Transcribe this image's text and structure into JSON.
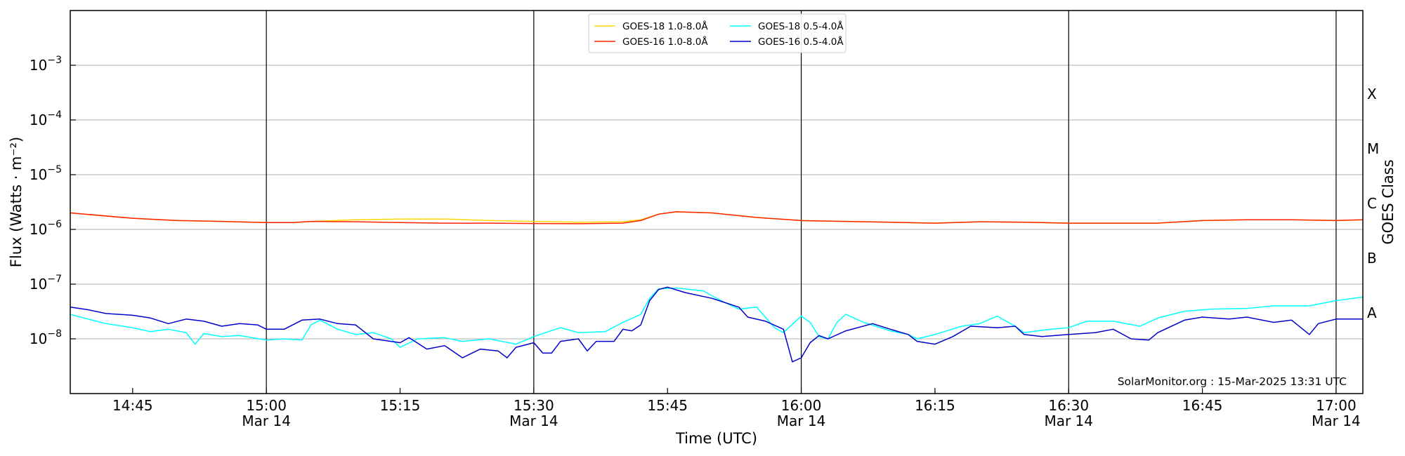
{
  "chart_data": {
    "type": "line",
    "xlabel": "Time (UTC)",
    "ylabel": "Flux (Watts · m⁻²)",
    "y2label": "GOES Class",
    "yscale": "log",
    "xlim": [
      "2025-03-14T14:38",
      "2025-03-14T17:03"
    ],
    "ylim": [
      1e-09,
      0.01
    ],
    "x_ticks": [
      {
        "time": "2025-03-14T14:45",
        "label": "14:45",
        "sublabel": "",
        "vline": false
      },
      {
        "time": "2025-03-14T15:00",
        "label": "15:00",
        "sublabel": "Mar 14",
        "vline": true
      },
      {
        "time": "2025-03-14T15:15",
        "label": "15:15",
        "sublabel": "",
        "vline": false
      },
      {
        "time": "2025-03-14T15:30",
        "label": "15:30",
        "sublabel": "Mar 14",
        "vline": true
      },
      {
        "time": "2025-03-14T15:45",
        "label": "15:45",
        "sublabel": "",
        "vline": false
      },
      {
        "time": "2025-03-14T16:00",
        "label": "16:00",
        "sublabel": "Mar 14",
        "vline": true
      },
      {
        "time": "2025-03-14T16:15",
        "label": "16:15",
        "sublabel": "",
        "vline": false
      },
      {
        "time": "2025-03-14T16:30",
        "label": "16:30",
        "sublabel": "Mar 14",
        "vline": true
      },
      {
        "time": "2025-03-14T16:45",
        "label": "16:45",
        "sublabel": "",
        "vline": false
      },
      {
        "time": "2025-03-14T17:00",
        "label": "17:00",
        "sublabel": "Mar 14",
        "vline": true
      }
    ],
    "y_ticks": [
      {
        "value": 1e-08,
        "exp": "-8"
      },
      {
        "value": 1e-07,
        "exp": "-7"
      },
      {
        "value": 1e-06,
        "exp": "-6"
      },
      {
        "value": 1e-05,
        "exp": "-5"
      },
      {
        "value": 0.0001,
        "exp": "-4"
      },
      {
        "value": 0.001,
        "exp": "-3"
      }
    ],
    "goes_classes": [
      {
        "label": "A",
        "value": 3e-08
      },
      {
        "label": "B",
        "value": 3e-07
      },
      {
        "label": "C",
        "value": 3e-06
      },
      {
        "label": "M",
        "value": 3e-05
      },
      {
        "label": "X",
        "value": 0.0003
      }
    ],
    "grid": true,
    "legend_position": "top-center",
    "credit": "SolarMonitor.org : 15-Mar-2025 13:31 UTC",
    "series": [
      {
        "name": "GOES-18 1.0-8.0Å",
        "color": "#ffd700",
        "points": [
          [
            "2025-03-14T14:38",
            2e-06
          ],
          [
            "2025-03-14T14:45",
            1.6e-06
          ],
          [
            "2025-03-14T14:50",
            1.45e-06
          ],
          [
            "2025-03-14T14:55",
            1.4e-06
          ],
          [
            "2025-03-14T15:00",
            1.33e-06
          ],
          [
            "2025-03-14T15:03",
            1.33e-06
          ],
          [
            "2025-03-14T15:05",
            1.4e-06
          ],
          [
            "2025-03-14T15:10",
            1.5e-06
          ],
          [
            "2025-03-14T15:15",
            1.55e-06
          ],
          [
            "2025-03-14T15:20",
            1.55e-06
          ],
          [
            "2025-03-14T15:25",
            1.45e-06
          ],
          [
            "2025-03-14T15:30",
            1.4e-06
          ],
          [
            "2025-03-14T15:35",
            1.35e-06
          ],
          [
            "2025-03-14T15:40",
            1.38e-06
          ],
          [
            "2025-03-14T15:42",
            1.5e-06
          ],
          [
            "2025-03-14T15:44",
            1.9e-06
          ],
          [
            "2025-03-14T15:46",
            2.1e-06
          ],
          [
            "2025-03-14T15:50",
            2e-06
          ],
          [
            "2025-03-14T15:55",
            1.65e-06
          ],
          [
            "2025-03-14T16:00",
            1.45e-06
          ],
          [
            "2025-03-14T16:05",
            1.4e-06
          ],
          [
            "2025-03-14T16:10",
            1.35e-06
          ],
          [
            "2025-03-14T16:15",
            1.3e-06
          ],
          [
            "2025-03-14T16:20",
            1.38e-06
          ],
          [
            "2025-03-14T16:25",
            1.35e-06
          ],
          [
            "2025-03-14T16:30",
            1.3e-06
          ],
          [
            "2025-03-14T16:35",
            1.3e-06
          ],
          [
            "2025-03-14T16:40",
            1.3e-06
          ],
          [
            "2025-03-14T16:45",
            1.45e-06
          ],
          [
            "2025-03-14T16:50",
            1.5e-06
          ],
          [
            "2025-03-14T16:55",
            1.5e-06
          ],
          [
            "2025-03-14T17:00",
            1.45e-06
          ],
          [
            "2025-03-14T17:03",
            1.5e-06
          ]
        ]
      },
      {
        "name": "GOES-16 1.0-8.0Å",
        "color": "#ff2200",
        "points": [
          [
            "2025-03-14T14:38",
            2e-06
          ],
          [
            "2025-03-14T14:45",
            1.6e-06
          ],
          [
            "2025-03-14T14:50",
            1.45e-06
          ],
          [
            "2025-03-14T14:55",
            1.4e-06
          ],
          [
            "2025-03-14T15:00",
            1.33e-06
          ],
          [
            "2025-03-14T15:03",
            1.33e-06
          ],
          [
            "2025-03-14T15:05",
            1.4e-06
          ],
          [
            "2025-03-14T15:10",
            1.38e-06
          ],
          [
            "2025-03-14T15:15",
            1.33e-06
          ],
          [
            "2025-03-14T15:20",
            1.3e-06
          ],
          [
            "2025-03-14T15:25",
            1.3e-06
          ],
          [
            "2025-03-14T15:30",
            1.28e-06
          ],
          [
            "2025-03-14T15:35",
            1.27e-06
          ],
          [
            "2025-03-14T15:40",
            1.3e-06
          ],
          [
            "2025-03-14T15:42",
            1.45e-06
          ],
          [
            "2025-03-14T15:44",
            1.9e-06
          ],
          [
            "2025-03-14T15:46",
            2.1e-06
          ],
          [
            "2025-03-14T15:50",
            2e-06
          ],
          [
            "2025-03-14T15:55",
            1.65e-06
          ],
          [
            "2025-03-14T16:00",
            1.45e-06
          ],
          [
            "2025-03-14T16:05",
            1.4e-06
          ],
          [
            "2025-03-14T16:10",
            1.35e-06
          ],
          [
            "2025-03-14T16:15",
            1.3e-06
          ],
          [
            "2025-03-14T16:20",
            1.38e-06
          ],
          [
            "2025-03-14T16:25",
            1.35e-06
          ],
          [
            "2025-03-14T16:30",
            1.3e-06
          ],
          [
            "2025-03-14T16:35",
            1.3e-06
          ],
          [
            "2025-03-14T16:40",
            1.3e-06
          ],
          [
            "2025-03-14T16:45",
            1.45e-06
          ],
          [
            "2025-03-14T16:50",
            1.5e-06
          ],
          [
            "2025-03-14T16:55",
            1.5e-06
          ],
          [
            "2025-03-14T17:00",
            1.45e-06
          ],
          [
            "2025-03-14T17:03",
            1.5e-06
          ]
        ]
      },
      {
        "name": "GOES-18 0.5-4.0Å",
        "color": "#00ffff",
        "points": [
          [
            "2025-03-14T14:38",
            2.8e-08
          ],
          [
            "2025-03-14T14:40",
            2.3e-08
          ],
          [
            "2025-03-14T14:42",
            1.9e-08
          ],
          [
            "2025-03-14T14:45",
            1.6e-08
          ],
          [
            "2025-03-14T14:47",
            1.35e-08
          ],
          [
            "2025-03-14T14:49",
            1.5e-08
          ],
          [
            "2025-03-14T14:51",
            1.3e-08
          ],
          [
            "2025-03-14T14:52",
            8e-09
          ],
          [
            "2025-03-14T14:53",
            1.25e-08
          ],
          [
            "2025-03-14T14:55",
            1.1e-08
          ],
          [
            "2025-03-14T14:57",
            1.15e-08
          ],
          [
            "2025-03-14T15:00",
            9.5e-09
          ],
          [
            "2025-03-14T15:02",
            1e-08
          ],
          [
            "2025-03-14T15:04",
            9.5e-09
          ],
          [
            "2025-03-14T15:05",
            1.8e-08
          ],
          [
            "2025-03-14T15:06",
            2.2e-08
          ],
          [
            "2025-03-14T15:08",
            1.5e-08
          ],
          [
            "2025-03-14T15:10",
            1.2e-08
          ],
          [
            "2025-03-14T15:12",
            1.3e-08
          ],
          [
            "2025-03-14T15:14",
            1e-08
          ],
          [
            "2025-03-14T15:15",
            7e-09
          ],
          [
            "2025-03-14T15:17",
            1e-08
          ],
          [
            "2025-03-14T15:20",
            1.05e-08
          ],
          [
            "2025-03-14T15:22",
            9e-09
          ],
          [
            "2025-03-14T15:25",
            1e-08
          ],
          [
            "2025-03-14T15:28",
            8e-09
          ],
          [
            "2025-03-14T15:30",
            1.1e-08
          ],
          [
            "2025-03-14T15:33",
            1.6e-08
          ],
          [
            "2025-03-14T15:35",
            1.3e-08
          ],
          [
            "2025-03-14T15:38",
            1.35e-08
          ],
          [
            "2025-03-14T15:40",
            2e-08
          ],
          [
            "2025-03-14T15:42",
            2.8e-08
          ],
          [
            "2025-03-14T15:43",
            5.5e-08
          ],
          [
            "2025-03-14T15:44",
            8.2e-08
          ],
          [
            "2025-03-14T15:46",
            8.5e-08
          ],
          [
            "2025-03-14T15:49",
            7.5e-08
          ],
          [
            "2025-03-14T15:51",
            5e-08
          ],
          [
            "2025-03-14T15:53",
            3.5e-08
          ],
          [
            "2025-03-14T15:55",
            3.8e-08
          ],
          [
            "2025-03-14T15:57",
            1.6e-08
          ],
          [
            "2025-03-14T15:58",
            1.3e-08
          ],
          [
            "2025-03-14T16:00",
            2.6e-08
          ],
          [
            "2025-03-14T16:01",
            2e-08
          ],
          [
            "2025-03-14T16:02",
            1.1e-08
          ],
          [
            "2025-03-14T16:03",
            1e-08
          ],
          [
            "2025-03-14T16:04",
            2e-08
          ],
          [
            "2025-03-14T16:05",
            2.8e-08
          ],
          [
            "2025-03-14T16:07",
            2e-08
          ],
          [
            "2025-03-14T16:10",
            1.4e-08
          ],
          [
            "2025-03-14T16:12",
            1.2e-08
          ],
          [
            "2025-03-14T16:13",
            1e-08
          ],
          [
            "2025-03-14T16:15",
            1.2e-08
          ],
          [
            "2025-03-14T16:18",
            1.7e-08
          ],
          [
            "2025-03-14T16:20",
            1.9e-08
          ],
          [
            "2025-03-14T16:22",
            2.6e-08
          ],
          [
            "2025-03-14T16:24",
            1.7e-08
          ],
          [
            "2025-03-14T16:25",
            1.3e-08
          ],
          [
            "2025-03-14T16:28",
            1.5e-08
          ],
          [
            "2025-03-14T16:30",
            1.6e-08
          ],
          [
            "2025-03-14T16:32",
            2.1e-08
          ],
          [
            "2025-03-14T16:35",
            2.1e-08
          ],
          [
            "2025-03-14T16:38",
            1.7e-08
          ],
          [
            "2025-03-14T16:40",
            2.4e-08
          ],
          [
            "2025-03-14T16:43",
            3.2e-08
          ],
          [
            "2025-03-14T16:46",
            3.5e-08
          ],
          [
            "2025-03-14T16:50",
            3.6e-08
          ],
          [
            "2025-03-14T16:53",
            4e-08
          ],
          [
            "2025-03-14T16:57",
            4e-08
          ],
          [
            "2025-03-14T17:00",
            5e-08
          ],
          [
            "2025-03-14T17:03",
            5.8e-08
          ]
        ]
      },
      {
        "name": "GOES-16 0.5-4.0Å",
        "color": "#0000cc",
        "points": [
          [
            "2025-03-14T14:38",
            3.8e-08
          ],
          [
            "2025-03-14T14:40",
            3.4e-08
          ],
          [
            "2025-03-14T14:42",
            2.9e-08
          ],
          [
            "2025-03-14T14:45",
            2.7e-08
          ],
          [
            "2025-03-14T14:47",
            2.4e-08
          ],
          [
            "2025-03-14T14:49",
            1.9e-08
          ],
          [
            "2025-03-14T14:51",
            2.3e-08
          ],
          [
            "2025-03-14T14:53",
            2.1e-08
          ],
          [
            "2025-03-14T14:55",
            1.7e-08
          ],
          [
            "2025-03-14T14:57",
            1.9e-08
          ],
          [
            "2025-03-14T14:59",
            1.8e-08
          ],
          [
            "2025-03-14T15:00",
            1.5e-08
          ],
          [
            "2025-03-14T15:02",
            1.5e-08
          ],
          [
            "2025-03-14T15:04",
            2.2e-08
          ],
          [
            "2025-03-14T15:06",
            2.3e-08
          ],
          [
            "2025-03-14T15:08",
            1.9e-08
          ],
          [
            "2025-03-14T15:10",
            1.8e-08
          ],
          [
            "2025-03-14T15:12",
            1e-08
          ],
          [
            "2025-03-14T15:15",
            8.5e-09
          ],
          [
            "2025-03-14T15:16",
            1.05e-08
          ],
          [
            "2025-03-14T15:18",
            6.5e-09
          ],
          [
            "2025-03-14T15:20",
            7.5e-09
          ],
          [
            "2025-03-14T15:22",
            4.5e-09
          ],
          [
            "2025-03-14T15:24",
            6.5e-09
          ],
          [
            "2025-03-14T15:26",
            6e-09
          ],
          [
            "2025-03-14T15:27",
            4.5e-09
          ],
          [
            "2025-03-14T15:28",
            7e-09
          ],
          [
            "2025-03-14T15:30",
            8.5e-09
          ],
          [
            "2025-03-14T15:31",
            5.5e-09
          ],
          [
            "2025-03-14T15:32",
            5.5e-09
          ],
          [
            "2025-03-14T15:33",
            9e-09
          ],
          [
            "2025-03-14T15:35",
            1e-08
          ],
          [
            "2025-03-14T15:36",
            6e-09
          ],
          [
            "2025-03-14T15:37",
            9e-09
          ],
          [
            "2025-03-14T15:39",
            9e-09
          ],
          [
            "2025-03-14T15:40",
            1.5e-08
          ],
          [
            "2025-03-14T15:41",
            1.4e-08
          ],
          [
            "2025-03-14T15:42",
            1.8e-08
          ],
          [
            "2025-03-14T15:43",
            5e-08
          ],
          [
            "2025-03-14T15:44",
            8e-08
          ],
          [
            "2025-03-14T15:45",
            8.8e-08
          ],
          [
            "2025-03-14T15:47",
            7e-08
          ],
          [
            "2025-03-14T15:50",
            5.5e-08
          ],
          [
            "2025-03-14T15:53",
            3.8e-08
          ],
          [
            "2025-03-14T15:54",
            2.5e-08
          ],
          [
            "2025-03-14T15:56",
            2.1e-08
          ],
          [
            "2025-03-14T15:58",
            1.5e-08
          ],
          [
            "2025-03-14T15:59",
            3.8e-09
          ],
          [
            "2025-03-14T16:00",
            4.5e-09
          ],
          [
            "2025-03-14T16:01",
            8.5e-09
          ],
          [
            "2025-03-14T16:02",
            1.15e-08
          ],
          [
            "2025-03-14T16:03",
            1e-08
          ],
          [
            "2025-03-14T16:05",
            1.4e-08
          ],
          [
            "2025-03-14T16:08",
            1.9e-08
          ],
          [
            "2025-03-14T16:10",
            1.5e-08
          ],
          [
            "2025-03-14T16:12",
            1.2e-08
          ],
          [
            "2025-03-14T16:13",
            9e-09
          ],
          [
            "2025-03-14T16:15",
            8e-09
          ],
          [
            "2025-03-14T16:17",
            1.1e-08
          ],
          [
            "2025-03-14T16:19",
            1.7e-08
          ],
          [
            "2025-03-14T16:22",
            1.6e-08
          ],
          [
            "2025-03-14T16:24",
            1.7e-08
          ],
          [
            "2025-03-14T16:25",
            1.2e-08
          ],
          [
            "2025-03-14T16:27",
            1.1e-08
          ],
          [
            "2025-03-14T16:30",
            1.2e-08
          ],
          [
            "2025-03-14T16:33",
            1.3e-08
          ],
          [
            "2025-03-14T16:35",
            1.5e-08
          ],
          [
            "2025-03-14T16:37",
            1e-08
          ],
          [
            "2025-03-14T16:39",
            9.5e-09
          ],
          [
            "2025-03-14T16:40",
            1.3e-08
          ],
          [
            "2025-03-14T16:43",
            2.2e-08
          ],
          [
            "2025-03-14T16:45",
            2.5e-08
          ],
          [
            "2025-03-14T16:48",
            2.3e-08
          ],
          [
            "2025-03-14T16:50",
            2.5e-08
          ],
          [
            "2025-03-14T16:53",
            2e-08
          ],
          [
            "2025-03-14T16:55",
            2.2e-08
          ],
          [
            "2025-03-14T16:57",
            1.2e-08
          ],
          [
            "2025-03-14T16:58",
            1.9e-08
          ],
          [
            "2025-03-14T17:00",
            2.3e-08
          ],
          [
            "2025-03-14T17:03",
            2.3e-08
          ]
        ]
      }
    ]
  }
}
